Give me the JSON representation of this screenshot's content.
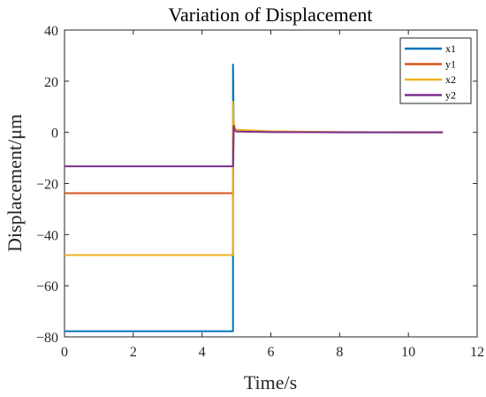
{
  "chart_data": {
    "type": "line",
    "title": "Variation of Displacement",
    "xlabel": "Time/s",
    "ylabel": "Displacement/μm",
    "xlim": [
      0,
      12
    ],
    "ylim": [
      -80,
      40
    ],
    "xticks": [
      0,
      2,
      4,
      6,
      8,
      10,
      12
    ],
    "yticks": [
      -80,
      -60,
      -40,
      -20,
      0,
      20,
      40
    ],
    "xtick_labels": [
      "0",
      "2",
      "4",
      "6",
      "8",
      "10",
      "12"
    ],
    "ytick_labels": [
      "−80",
      "−60",
      "−40",
      "−20",
      "0",
      "20",
      "40"
    ],
    "grid": false,
    "legend_position": "top-right",
    "series": [
      {
        "name": "x1",
        "color": "#0072BD",
        "x": [
          0,
          4.88,
          4.9,
          4.9,
          4.92,
          4.95,
          5.0,
          5.5,
          6.0,
          8.0,
          10.0,
          11.0
        ],
        "y": [
          -77.8,
          -77.8,
          -77.8,
          26.5,
          3.0,
          1.0,
          0.6,
          0.4,
          0.2,
          0.0,
          0.0,
          0.0
        ]
      },
      {
        "name": "y1",
        "color": "#D95319",
        "x": [
          0,
          4.88,
          4.9,
          4.92,
          4.95,
          5.0,
          5.5,
          6.0,
          8.0,
          10.0,
          11.0
        ],
        "y": [
          -23.8,
          -23.8,
          -23.8,
          4.0,
          1.5,
          0.8,
          0.5,
          0.3,
          0.1,
          0.0,
          0.0
        ]
      },
      {
        "name": "x2",
        "color": "#EDB120",
        "x": [
          0,
          4.88,
          4.9,
          4.9,
          4.92,
          4.95,
          5.0,
          5.5,
          6.0,
          8.0,
          10.0,
          11.0
        ],
        "y": [
          -48.0,
          -48.0,
          -48.0,
          12.0,
          2.5,
          1.5,
          1.0,
          0.7,
          0.4,
          0.1,
          0.0,
          0.0
        ]
      },
      {
        "name": "y2",
        "color": "#7E2F8E",
        "x": [
          0,
          4.88,
          4.9,
          4.92,
          4.95,
          5.0,
          5.5,
          6.0,
          8.0,
          10.0,
          11.0
        ],
        "y": [
          -13.3,
          -13.3,
          -13.3,
          2.5,
          0.8,
          0.3,
          0.2,
          0.1,
          0.0,
          0.0,
          0.0
        ]
      }
    ]
  }
}
